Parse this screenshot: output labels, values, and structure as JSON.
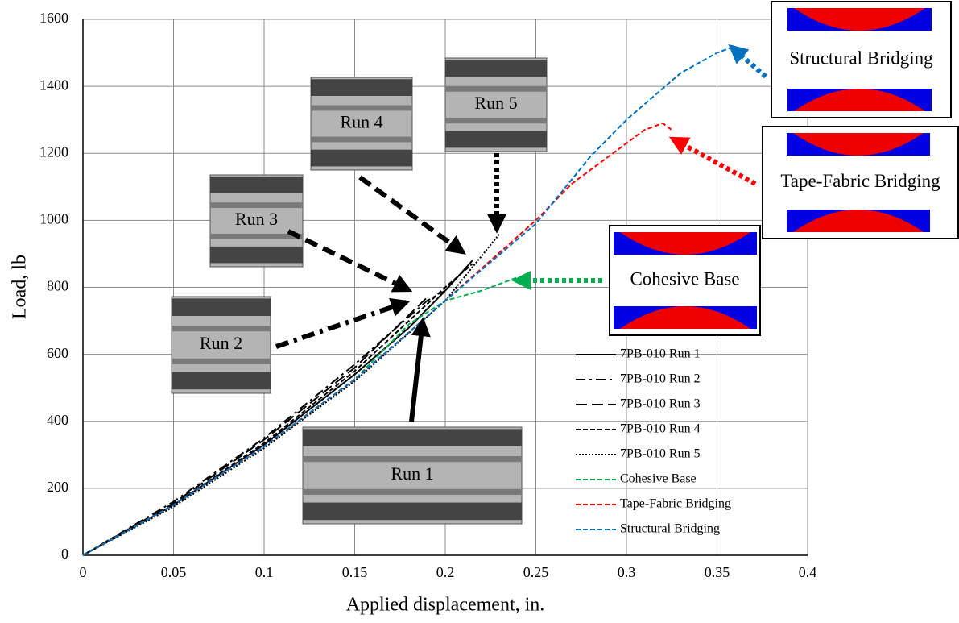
{
  "chart_data": {
    "type": "line",
    "x_label": "Applied displacement, in.",
    "y_label": "Load, lb",
    "xlim": [
      0,
      0.4
    ],
    "ylim": [
      0,
      1600
    ],
    "xticks": [
      0,
      0.05,
      0.1,
      0.15,
      0.2,
      0.25,
      0.3,
      0.35,
      0.4
    ],
    "yticks": [
      0,
      200,
      400,
      600,
      800,
      1000,
      1200,
      1400,
      1600
    ],
    "grid": true,
    "series": [
      {
        "name": "7PB-010 Run 1",
        "color": "#000000",
        "dash": "solid",
        "x": [
          0,
          0.05,
          0.1,
          0.15,
          0.18,
          0.2,
          0.215
        ],
        "values": [
          0,
          150,
          330,
          540,
          680,
          790,
          880
        ]
      },
      {
        "name": "7PB-010 Run 2",
        "color": "#000000",
        "dash": "dash-dot",
        "x": [
          0,
          0.05,
          0.1,
          0.15,
          0.19,
          0.2
        ],
        "values": [
          0,
          160,
          350,
          570,
          760,
          790
        ]
      },
      {
        "name": "7PB-010 Run 3",
        "color": "#000000",
        "dash": "long-dash",
        "x": [
          0,
          0.05,
          0.1,
          0.15,
          0.19
        ],
        "values": [
          0,
          155,
          345,
          560,
          770
        ]
      },
      {
        "name": "7PB-010 Run 4",
        "color": "#000000",
        "dash": "dash",
        "x": [
          0,
          0.05,
          0.1,
          0.15,
          0.2,
          0.215
        ],
        "values": [
          0,
          150,
          335,
          550,
          800,
          870
        ]
      },
      {
        "name": "7PB-010 Run 5",
        "color": "#000000",
        "dash": "dot",
        "x": [
          0,
          0.05,
          0.1,
          0.15,
          0.2,
          0.23
        ],
        "values": [
          0,
          145,
          320,
          520,
          760,
          960
        ]
      },
      {
        "name": "Cohesive Base",
        "color": "#00b050",
        "dash": "dash",
        "x": [
          0,
          0.05,
          0.1,
          0.15,
          0.18,
          0.2,
          0.22,
          0.24
        ],
        "values": [
          0,
          150,
          325,
          525,
          690,
          760,
          790,
          830
        ]
      },
      {
        "name": "Tape-Fabric Bridging",
        "color": "#ff0000",
        "dash": "dash",
        "x": [
          0,
          0.05,
          0.1,
          0.15,
          0.2,
          0.25,
          0.27,
          0.3,
          0.31,
          0.32,
          0.325
        ],
        "values": [
          0,
          150,
          325,
          525,
          760,
          1000,
          1110,
          1230,
          1270,
          1290,
          1270
        ]
      },
      {
        "name": "Structural Bridging",
        "color": "#0070c0",
        "dash": "dash",
        "x": [
          0,
          0.05,
          0.1,
          0.15,
          0.2,
          0.25,
          0.28,
          0.3,
          0.33,
          0.35,
          0.36
        ],
        "values": [
          0,
          150,
          325,
          525,
          760,
          990,
          1190,
          1300,
          1440,
          1500,
          1520
        ]
      }
    ],
    "photo_labels": [
      "Run 1",
      "Run 2",
      "Run 3",
      "Run 4",
      "Run 5"
    ],
    "box_labels": [
      "Structural Bridging",
      "Tape-Fabric Bridging",
      "Cohesive Base"
    ]
  }
}
